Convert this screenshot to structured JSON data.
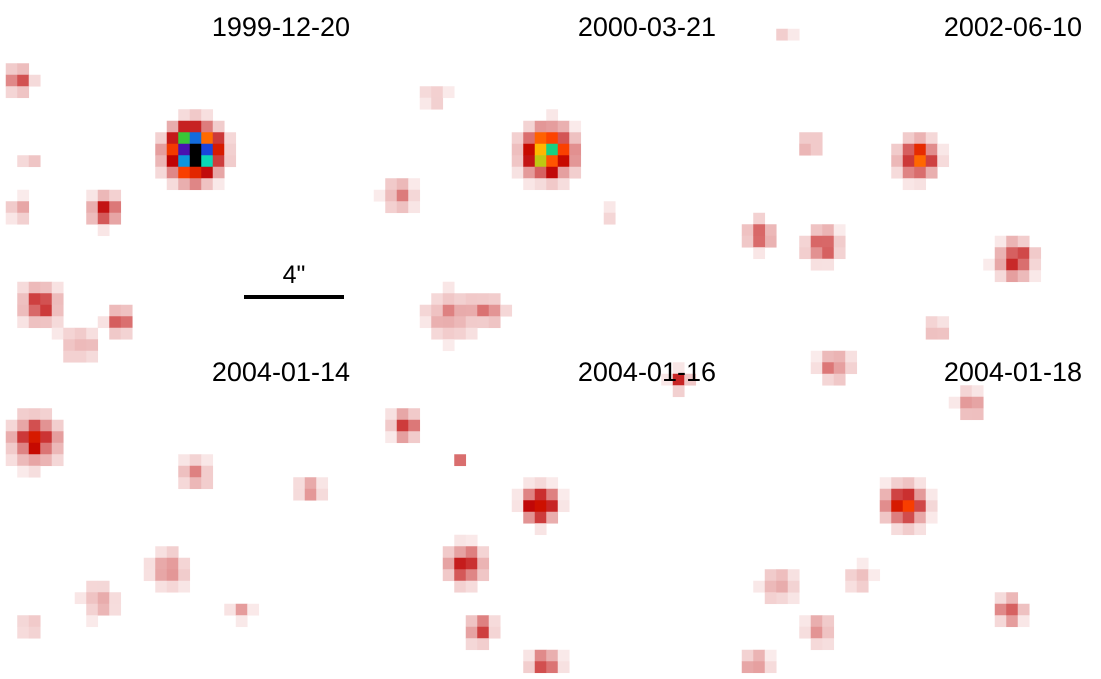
{
  "panels": [
    {
      "date": "1999-12-20"
    },
    {
      "date": "2000-03-21"
    },
    {
      "date": "2002-06-10"
    },
    {
      "date": "2004-01-14"
    },
    {
      "date": "2004-01-16"
    },
    {
      "date": "2004-01-18"
    }
  ],
  "scale_bar": {
    "label": "4\""
  }
}
